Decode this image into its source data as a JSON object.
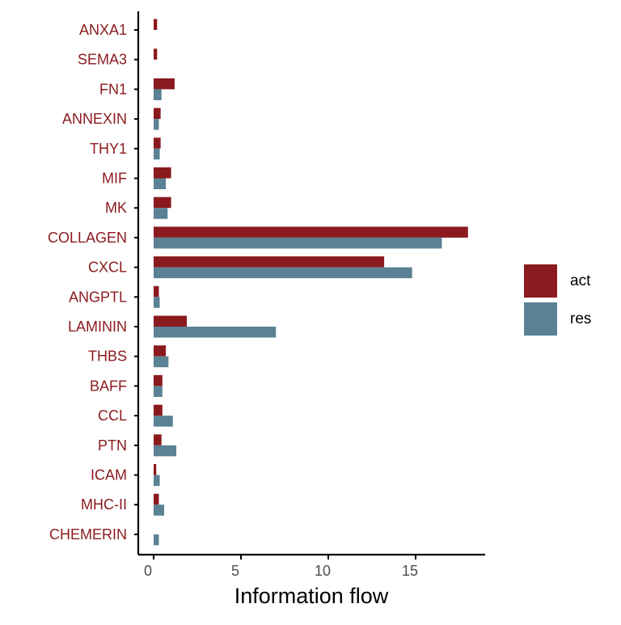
{
  "chart_data": {
    "type": "bar",
    "orientation": "horizontal",
    "categories": [
      "ANXA1",
      "SEMA3",
      "FN1",
      "ANNEXIN",
      "THY1",
      "MIF",
      "MK",
      "COLLAGEN",
      "CXCL",
      "ANGPTL",
      "LAMININ",
      "THBS",
      "BAFF",
      "CCL",
      "PTN",
      "ICAM",
      "MHC-II",
      "CHEMERIN"
    ],
    "series": [
      {
        "name": "act",
        "color": "#8B1A1E",
        "values": [
          0.2,
          0.2,
          1.2,
          0.4,
          0.4,
          1.0,
          1.0,
          18.0,
          13.2,
          0.3,
          1.9,
          0.7,
          0.5,
          0.5,
          0.45,
          0.15,
          0.3,
          0.0
        ]
      },
      {
        "name": "res",
        "color": "#5A8294",
        "values": [
          0.0,
          0.0,
          0.45,
          0.3,
          0.35,
          0.7,
          0.8,
          16.5,
          14.8,
          0.35,
          7.0,
          0.85,
          0.5,
          1.1,
          1.3,
          0.35,
          0.6,
          0.3
        ]
      }
    ],
    "xlabel": "Information flow",
    "ylabel": "",
    "xlim": [
      -0.8,
      18.7
    ],
    "xticks": [
      0,
      5,
      10,
      15
    ],
    "grid": false,
    "legend_position": "right",
    "category_label_color": "#8B1A1E"
  }
}
